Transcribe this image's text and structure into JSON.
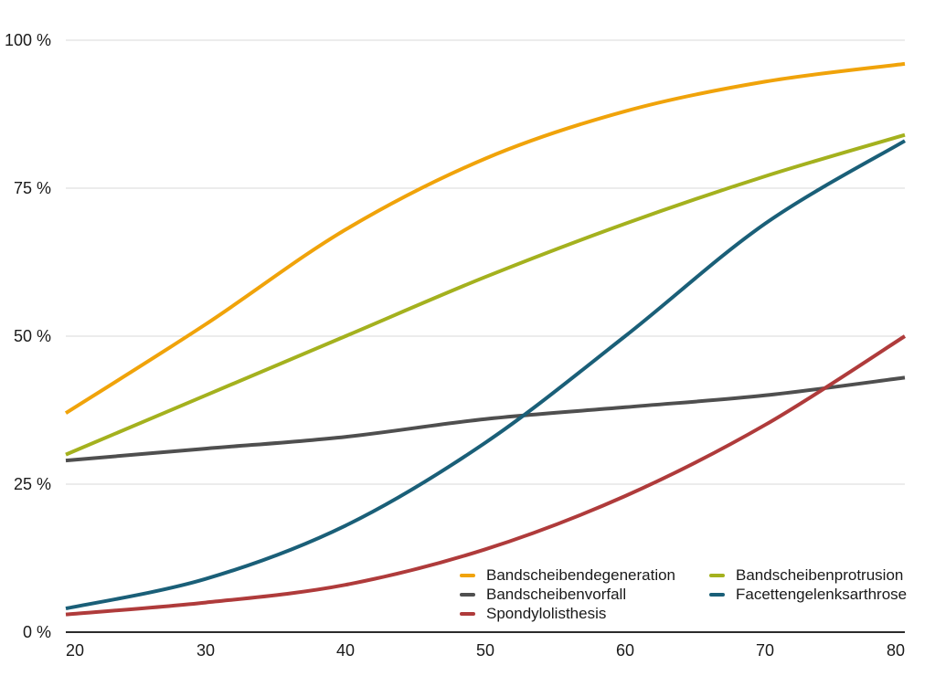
{
  "chart_data": {
    "type": "line",
    "x": [
      20,
      30,
      40,
      50,
      60,
      70,
      80
    ],
    "x_tick_labels": [
      "20",
      "30",
      "40",
      "50",
      "60",
      "70",
      "80"
    ],
    "y_ticks": [
      0,
      25,
      50,
      75,
      100
    ],
    "y_tick_labels": [
      "0 %",
      "25 %",
      "50 %",
      "75 %",
      "100 %"
    ],
    "xlim": [
      20,
      80
    ],
    "ylim": [
      0,
      100
    ],
    "grid": "horizontal",
    "legend_position": "bottom-inside-two-columns",
    "title": "",
    "xlabel": "",
    "ylabel": "",
    "series": [
      {
        "name": "Bandscheibendegeneration",
        "color": "#F0A30A",
        "values": [
          37,
          52,
          68,
          80,
          88,
          93,
          96
        ]
      },
      {
        "name": "Bandscheibenprotrusion",
        "color": "#A4B11E",
        "values": [
          30,
          40,
          50,
          60,
          69,
          77,
          84
        ]
      },
      {
        "name": "Bandscheibenvorfall",
        "color": "#4F4F4F",
        "values": [
          29,
          31,
          33,
          36,
          38,
          40,
          43
        ]
      },
      {
        "name": "Facettengelenksarthrose",
        "color": "#1A5F78",
        "values": [
          4,
          9,
          18,
          32,
          50,
          69,
          83
        ]
      },
      {
        "name": "Spondylolisthesis",
        "color": "#AF3B3B",
        "values": [
          3,
          5,
          8,
          14,
          23,
          35,
          50
        ]
      }
    ]
  },
  "colors": {
    "background": "#FFFFFF",
    "gridline": "#DADADA",
    "axis": "#2B2B2B",
    "text": "#1A1A1A"
  }
}
